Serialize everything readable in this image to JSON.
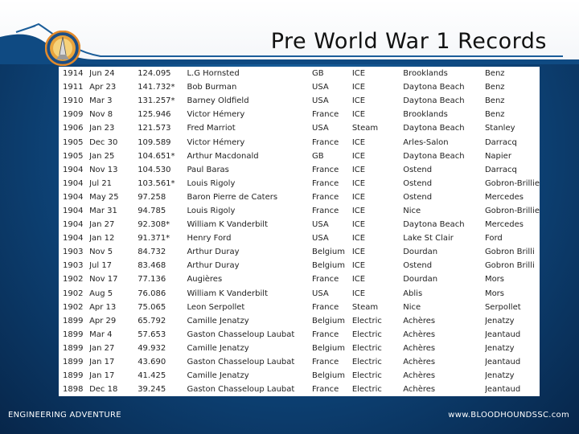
{
  "slide": {
    "title": "Pre World War 1 Records",
    "footer_left": "ENGINEERING ADVENTURE",
    "footer_right": "www.BLOODHOUNDSSC.com",
    "logo_icon": "bloodhound-ssc-logo-icon",
    "accent_color": "#1a5d99"
  },
  "records": [
    [
      "1914",
      "Jun 24",
      "124.095",
      "L.G Hornsted",
      "GB",
      "ICE",
      "Brooklands",
      "Benz"
    ],
    [
      "1911",
      "Apr 23",
      "141.732*",
      "Bob Burman",
      "USA",
      "ICE",
      "Daytona Beach",
      "Benz"
    ],
    [
      "1910",
      "Mar 3",
      "131.257*",
      "Barney Oldfield",
      "USA",
      "ICE",
      "Daytona Beach",
      "Benz"
    ],
    [
      "1909",
      "Nov 8",
      "125.946",
      "Victor Hémery",
      "France",
      "ICE",
      "Brooklands",
      "Benz"
    ],
    [
      "1906",
      "Jan 23",
      "121.573",
      "Fred Marriot",
      "USA",
      "Steam",
      "Daytona Beach",
      "Stanley"
    ],
    [
      "1905",
      "Dec 30",
      "109.589",
      "Victor Hémery",
      "France",
      "ICE",
      "Arles-Salon",
      "Darracq"
    ],
    [
      "1905",
      "Jan 25",
      "104.651*",
      "Arthur Macdonald",
      "GB",
      "ICE",
      "Daytona Beach",
      "Napier"
    ],
    [
      "1904",
      "Nov 13",
      "104.530",
      "Paul Baras",
      "France",
      "ICE",
      "Ostend",
      "Darracq"
    ],
    [
      "1904",
      "Jul 21",
      "103.561*",
      "Louis Rigoly",
      "France",
      "ICE",
      "Ostend",
      "Gobron-Brillie"
    ],
    [
      "1904",
      "May 25",
      "97.258",
      "Baron Pierre de Caters",
      "France",
      "ICE",
      "Ostend",
      "Mercedes"
    ],
    [
      "1904",
      "Mar 31",
      "94.785",
      "Louis Rigoly",
      "France",
      "ICE",
      "Nice",
      "Gobron-Brillie"
    ],
    [
      "1904",
      "Jan 27",
      "92.308*",
      "William K Vanderbilt",
      "USA",
      "ICE",
      "Daytona Beach",
      "Mercedes"
    ],
    [
      "1904",
      "Jan 12",
      "91.371*",
      "Henry Ford",
      "USA",
      "ICE",
      "Lake St Clair",
      "Ford"
    ],
    [
      "1903",
      "Nov 5",
      "84.732",
      "Arthur Duray",
      "Belgium",
      "ICE",
      "Dourdan",
      "Gobron Brilli"
    ],
    [
      "1903",
      "Jul 17",
      "83.468",
      "Arthur Duray",
      "Belgium",
      "ICE",
      "Ostend",
      "Gobron Brilli"
    ],
    [
      "1902",
      "Nov 17",
      "77.136",
      "Augières",
      "France",
      "ICE",
      "Dourdan",
      "Mors"
    ],
    [
      "1902",
      "Aug 5",
      "76.086",
      "William K Vanderbilt",
      "USA",
      "ICE",
      "Ablis",
      "Mors"
    ],
    [
      "1902",
      "Apr 13",
      "75.065",
      "Leon Serpollet",
      "France",
      "Steam",
      "Nice",
      "Serpollet"
    ],
    [
      "1899",
      "Apr 29",
      "65.792",
      "Camille Jenatzy",
      "Belgium",
      "Electric",
      "Achères",
      "Jenatzy"
    ],
    [
      "1899",
      "Mar 4",
      "57.653",
      "Gaston Chasseloup Laubat",
      "France",
      "Electric",
      "Achères",
      "Jeantaud"
    ],
    [
      "1899",
      "Jan 27",
      "49.932",
      "Camille Jenatzy",
      "Belgium",
      "Electric",
      "Achères",
      "Jenatzy"
    ],
    [
      "1899",
      "Jan 17",
      "43.690",
      "Gaston Chasseloup Laubat",
      "France",
      "Electric",
      "Achères",
      "Jeantaud"
    ],
    [
      "1899",
      "Jan 17",
      "41.425",
      "Camille Jenatzy",
      "Belgium",
      "Electric",
      "Achères",
      "Jenatzy"
    ],
    [
      "1898",
      "Dec 18",
      "39.245",
      "Gaston Chasseloup Laubat",
      "France",
      "Electric",
      "Achères",
      "Jeantaud"
    ]
  ]
}
